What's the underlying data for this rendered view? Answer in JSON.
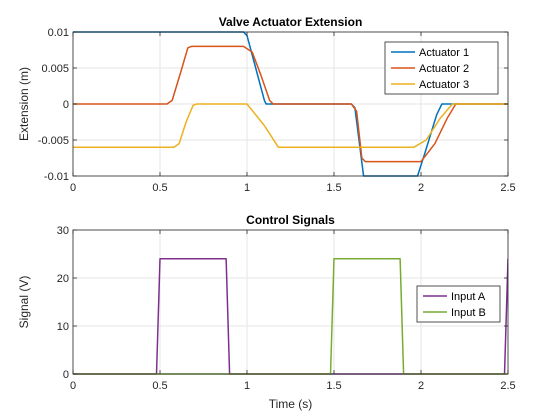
{
  "chart_data": [
    {
      "type": "line",
      "title": "Valve Actuator Extension",
      "xlabel": "",
      "ylabel": "Extension (m)",
      "xlim": [
        0,
        2.5
      ],
      "ylim": [
        -0.01,
        0.01
      ],
      "xticks": [
        0,
        0.5,
        1,
        1.5,
        2,
        2.5
      ],
      "xtick_labels": [
        "0",
        "0.5",
        "1",
        "1.5",
        "2",
        "2.5"
      ],
      "yticks": [
        -0.01,
        -0.005,
        0,
        0.005,
        0.01
      ],
      "ytick_labels": [
        "-0.01",
        "-0.005",
        "0",
        "0.005",
        "0.01"
      ],
      "grid": true,
      "legend": "top-right",
      "series": [
        {
          "name": "Actuator 1",
          "color": "#0072BD",
          "points": [
            [
              0,
              0.01
            ],
            [
              0.98,
              0.01
            ],
            [
              1.0,
              0.0095
            ],
            [
              1.05,
              0.005
            ],
            [
              1.1,
              0.0005
            ],
            [
              1.11,
              0
            ],
            [
              1.6,
              0
            ],
            [
              1.62,
              -0.0005
            ],
            [
              1.67,
              -0.01
            ],
            [
              1.98,
              -0.01
            ],
            [
              2.02,
              -0.007
            ],
            [
              2.09,
              -0.0015
            ],
            [
              2.12,
              0
            ],
            [
              2.5,
              0
            ]
          ]
        },
        {
          "name": "Actuator 2",
          "color": "#D95319",
          "points": [
            [
              0,
              0
            ],
            [
              0.54,
              0
            ],
            [
              0.57,
              0.0005
            ],
            [
              0.62,
              0.0045
            ],
            [
              0.66,
              0.0078
            ],
            [
              0.68,
              0.008
            ],
            [
              0.98,
              0.008
            ],
            [
              1.03,
              0.0072
            ],
            [
              1.08,
              0.004
            ],
            [
              1.13,
              0.0005
            ],
            [
              1.15,
              0
            ],
            [
              1.6,
              0
            ],
            [
              1.63,
              -0.001
            ],
            [
              1.66,
              -0.0075
            ],
            [
              1.68,
              -0.008
            ],
            [
              2.0,
              -0.008
            ],
            [
              2.08,
              -0.0055
            ],
            [
              2.15,
              -0.002
            ],
            [
              2.2,
              0
            ],
            [
              2.5,
              0
            ]
          ]
        },
        {
          "name": "Actuator 3",
          "color": "#EDB120",
          "points": [
            [
              0,
              -0.006
            ],
            [
              0.58,
              -0.006
            ],
            [
              0.61,
              -0.0055
            ],
            [
              0.65,
              -0.0025
            ],
            [
              0.69,
              -0.0002
            ],
            [
              0.71,
              0
            ],
            [
              1.0,
              0
            ],
            [
              1.1,
              -0.003
            ],
            [
              1.18,
              -0.006
            ],
            [
              1.96,
              -0.006
            ],
            [
              2.03,
              -0.005
            ],
            [
              2.11,
              -0.002
            ],
            [
              2.18,
              0
            ],
            [
              2.5,
              0
            ]
          ]
        }
      ]
    },
    {
      "type": "line",
      "title": "Control Signals",
      "xlabel": "Time (s)",
      "ylabel": "Signal (V)",
      "xlim": [
        0,
        2.5
      ],
      "ylim": [
        0,
        30
      ],
      "xticks": [
        0,
        0.5,
        1,
        1.5,
        2,
        2.5
      ],
      "xtick_labels": [
        "0",
        "0.5",
        "1",
        "1.5",
        "2",
        "2.5"
      ],
      "yticks": [
        0,
        10,
        20,
        30
      ],
      "ytick_labels": [
        "0",
        "10",
        "20",
        "30"
      ],
      "grid": true,
      "legend": "right",
      "series": [
        {
          "name": "Input A",
          "color": "#7E2F8E",
          "points": [
            [
              0,
              0
            ],
            [
              0.48,
              0
            ],
            [
              0.5,
              24
            ],
            [
              0.88,
              24
            ],
            [
              0.9,
              0
            ],
            [
              2.48,
              0
            ],
            [
              2.5,
              24
            ]
          ]
        },
        {
          "name": "Input B",
          "color": "#77AC30",
          "points": [
            [
              0,
              0
            ],
            [
              1.48,
              0
            ],
            [
              1.5,
              24
            ],
            [
              1.88,
              24
            ],
            [
              1.9,
              0
            ],
            [
              2.5,
              0
            ]
          ]
        }
      ]
    }
  ]
}
